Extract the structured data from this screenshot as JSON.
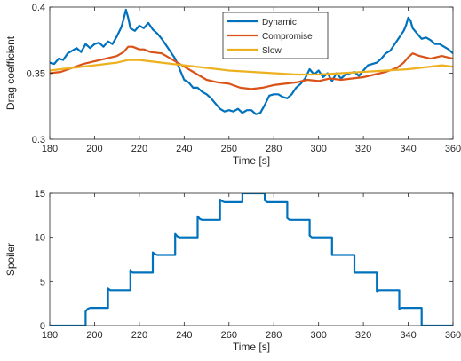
{
  "chart_data": [
    {
      "type": "line",
      "xlabel": "Time [s]",
      "ylabel": "Drag coefficient",
      "xlim": [
        180,
        360
      ],
      "ylim": [
        0.3,
        0.4
      ],
      "xticks": [
        180,
        200,
        220,
        240,
        260,
        280,
        300,
        320,
        340,
        360
      ],
      "yticks": [
        0.3,
        0.35,
        0.4
      ],
      "ytick_labels": [
        "0.3",
        "0.35",
        "0.4"
      ],
      "legend": "top-center",
      "grid": false,
      "series": [
        {
          "name": "Dynamic",
          "color": "#0072BD",
          "x": [
            180,
            182,
            184,
            186,
            188,
            190,
            192,
            194,
            196,
            198,
            200,
            202,
            204,
            206,
            208,
            210,
            212,
            213,
            214,
            215,
            216,
            218,
            220,
            222,
            224,
            226,
            228,
            230,
            232,
            234,
            236,
            238,
            240,
            242,
            244,
            246,
            248,
            250,
            252,
            254,
            256,
            258,
            260,
            262,
            264,
            266,
            268,
            270,
            272,
            274,
            276,
            278,
            280,
            282,
            284,
            286,
            288,
            290,
            292,
            294,
            296,
            298,
            300,
            302,
            304,
            306,
            308,
            310,
            312,
            314,
            316,
            318,
            320,
            322,
            324,
            326,
            328,
            330,
            332,
            334,
            336,
            338,
            339,
            340,
            341,
            342,
            344,
            346,
            348,
            350,
            352,
            354,
            356,
            358,
            360
          ],
          "y": [
            0.358,
            0.357,
            0.361,
            0.36,
            0.365,
            0.367,
            0.369,
            0.366,
            0.372,
            0.369,
            0.372,
            0.373,
            0.37,
            0.374,
            0.372,
            0.378,
            0.385,
            0.391,
            0.398,
            0.392,
            0.384,
            0.382,
            0.386,
            0.384,
            0.388,
            0.383,
            0.38,
            0.376,
            0.371,
            0.366,
            0.361,
            0.353,
            0.345,
            0.343,
            0.339,
            0.339,
            0.336,
            0.334,
            0.331,
            0.327,
            0.323,
            0.321,
            0.322,
            0.321,
            0.323,
            0.32,
            0.322,
            0.322,
            0.319,
            0.32,
            0.326,
            0.333,
            0.334,
            0.334,
            0.332,
            0.331,
            0.334,
            0.339,
            0.342,
            0.346,
            0.353,
            0.349,
            0.352,
            0.347,
            0.35,
            0.344,
            0.35,
            0.346,
            0.349,
            0.35,
            0.351,
            0.348,
            0.352,
            0.356,
            0.357,
            0.358,
            0.361,
            0.365,
            0.367,
            0.372,
            0.377,
            0.382,
            0.386,
            0.392,
            0.39,
            0.384,
            0.38,
            0.376,
            0.377,
            0.375,
            0.372,
            0.372,
            0.37,
            0.368,
            0.365
          ]
        },
        {
          "name": "Compromise",
          "color": "#D95319",
          "x": [
            180,
            185,
            190,
            195,
            200,
            205,
            210,
            213,
            215,
            217,
            220,
            222,
            225,
            230,
            235,
            240,
            245,
            250,
            255,
            260,
            265,
            270,
            275,
            280,
            285,
            290,
            295,
            300,
            305,
            310,
            315,
            320,
            325,
            330,
            335,
            338,
            340,
            342,
            345,
            350,
            355,
            360
          ],
          "y": [
            0.35,
            0.351,
            0.354,
            0.357,
            0.359,
            0.361,
            0.363,
            0.366,
            0.37,
            0.37,
            0.368,
            0.368,
            0.366,
            0.365,
            0.36,
            0.355,
            0.35,
            0.345,
            0.343,
            0.342,
            0.339,
            0.338,
            0.339,
            0.341,
            0.342,
            0.343,
            0.345,
            0.344,
            0.346,
            0.345,
            0.346,
            0.347,
            0.349,
            0.351,
            0.354,
            0.358,
            0.362,
            0.365,
            0.363,
            0.361,
            0.363,
            0.361
          ]
        },
        {
          "name": "Slow",
          "color": "#EDB120",
          "x": [
            180,
            190,
            200,
            210,
            215,
            220,
            225,
            230,
            240,
            250,
            260,
            270,
            280,
            290,
            300,
            310,
            320,
            330,
            340,
            350,
            355,
            360
          ],
          "y": [
            0.352,
            0.354,
            0.356,
            0.358,
            0.36,
            0.36,
            0.359,
            0.358,
            0.356,
            0.354,
            0.352,
            0.351,
            0.35,
            0.349,
            0.349,
            0.35,
            0.351,
            0.352,
            0.353,
            0.355,
            0.356,
            0.355
          ]
        }
      ]
    },
    {
      "type": "line",
      "xlabel": "Time [s]",
      "ylabel": "Spoiler",
      "xlim": [
        180,
        360
      ],
      "ylim": [
        0,
        15
      ],
      "xticks": [
        180,
        200,
        220,
        240,
        260,
        280,
        300,
        320,
        340,
        360
      ],
      "yticks": [
        0,
        5,
        10,
        15
      ],
      "ytick_labels": [
        "0",
        "5",
        "10",
        "15"
      ],
      "grid": false,
      "series": [
        {
          "color": "#0072BD",
          "x": [
            180,
            196,
            196,
            197,
            198,
            198,
            206,
            206,
            207,
            208,
            208,
            216,
            216,
            217,
            218,
            218,
            226,
            226,
            227,
            228,
            228,
            236,
            236,
            237,
            238,
            238,
            246,
            246,
            247,
            248,
            248,
            256,
            256,
            257,
            258,
            258,
            266,
            266,
            267,
            268,
            268,
            276,
            276,
            277,
            278,
            278,
            286,
            286,
            287,
            288,
            288,
            296,
            296,
            297,
            298,
            298,
            306,
            306,
            307,
            308,
            308,
            316,
            316,
            317,
            318,
            318,
            326,
            326,
            327,
            328,
            328,
            336,
            336,
            337,
            338,
            338,
            346,
            346,
            347,
            348,
            348,
            360
          ],
          "y": [
            0,
            0,
            1.6,
            1.9,
            2.0,
            2.0,
            2.0,
            4.2,
            4.0,
            4.0,
            4.0,
            4.0,
            6.3,
            6.0,
            6.0,
            6.0,
            6.0,
            8.3,
            8.1,
            8.0,
            8.0,
            8.0,
            10.4,
            10.1,
            10.0,
            10.0,
            10.0,
            12.4,
            12.1,
            12.0,
            12.0,
            12.0,
            14.3,
            14.1,
            14.0,
            14.0,
            14.0,
            15.0,
            15.0,
            15.0,
            15.0,
            15.0,
            14.2,
            14.0,
            14.0,
            14.0,
            14.0,
            12.2,
            12.0,
            12.0,
            12.0,
            12.0,
            10.2,
            10.0,
            10.0,
            10.0,
            10.0,
            8.0,
            8.0,
            8.0,
            8.0,
            8.0,
            6.0,
            6.0,
            6.0,
            6.0,
            6.0,
            3.9,
            4.0,
            4.0,
            4.0,
            4.0,
            1.9,
            2.0,
            2.0,
            2.0,
            2.0,
            0,
            0,
            0,
            0,
            0
          ]
        }
      ]
    }
  ]
}
